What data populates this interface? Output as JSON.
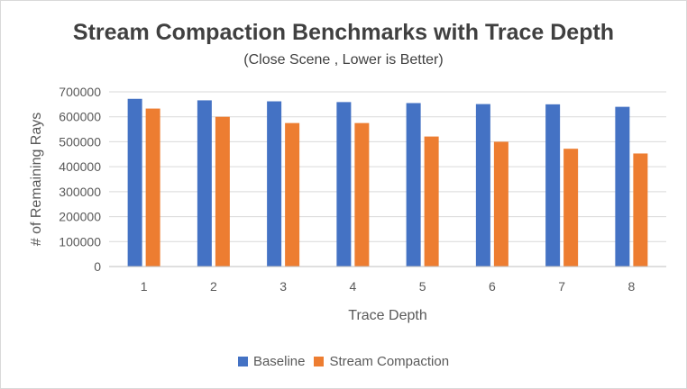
{
  "chart_data": {
    "type": "bar",
    "title": "Stream Compaction Benchmarks with Trace Depth",
    "subtitle": "(Close Scene , Lower is Better)",
    "xlabel": "Trace Depth",
    "ylabel": "# of Remaining Rays",
    "categories": [
      "1",
      "2",
      "3",
      "4",
      "5",
      "6",
      "7",
      "8"
    ],
    "series": [
      {
        "name": "Baseline",
        "color": "#4472c4",
        "values": [
          672000,
          666000,
          662000,
          659000,
          655000,
          651000,
          650000,
          640000
        ]
      },
      {
        "name": "Stream Compaction",
        "color": "#ed7d31",
        "values": [
          633000,
          600000,
          575000,
          575000,
          521000,
          500000,
          472000,
          453000
        ]
      }
    ],
    "ylim": [
      0,
      700000
    ],
    "yticks": [
      "0",
      "100000",
      "200000",
      "300000",
      "400000",
      "500000",
      "600000",
      "700000"
    ],
    "grid": true,
    "legend_position": "bottom"
  }
}
